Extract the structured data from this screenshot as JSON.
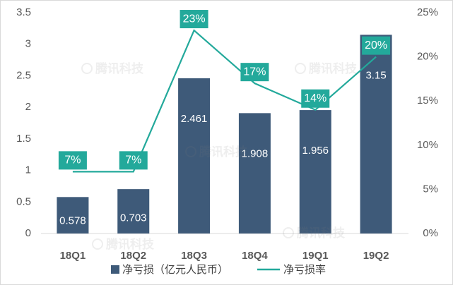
{
  "chart_data": {
    "type": "bar",
    "categories": [
      "18Q1",
      "18Q2",
      "18Q3",
      "18Q4",
      "19Q1",
      "19Q2"
    ],
    "series": [
      {
        "name": "净亏损（亿元人民币）",
        "type": "bar",
        "axis": "left",
        "color": "#3E5A79",
        "values": [
          0.578,
          0.703,
          2.461,
          1.908,
          1.956,
          3.15
        ]
      },
      {
        "name": "净亏损率",
        "type": "line",
        "axis": "right",
        "color": "#23A99B",
        "values": [
          7,
          7,
          23,
          17,
          14,
          20
        ],
        "labels": [
          "7%",
          "7%",
          "23%",
          "17%",
          "14%",
          "20%"
        ]
      }
    ],
    "ylim": [
      0,
      3.5
    ],
    "yticks": [
      "0",
      "0.5",
      "1",
      "1.5",
      "2",
      "2.5",
      "3",
      "3.5"
    ],
    "y2lim": [
      0,
      25
    ],
    "y2ticks": [
      "0%",
      "5%",
      "10%",
      "15%",
      "20%",
      "25%"
    ],
    "grid": false,
    "legend": "bottom"
  },
  "watermark": "腾讯科技",
  "colors": {
    "axis_text": "#595959",
    "baseline": "#D9D9D9",
    "label_text": "#FFFFFF",
    "border": "#D9D9D9"
  }
}
